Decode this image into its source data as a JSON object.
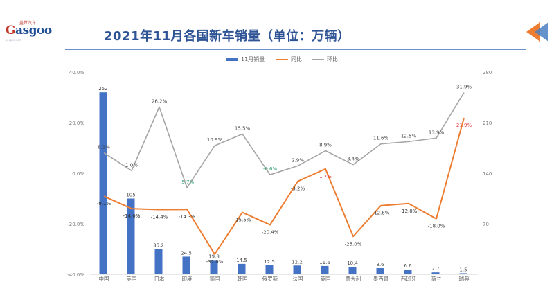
{
  "header": {
    "logo_top": "盖世汽车",
    "logo_word_g": "G",
    "logo_word_rest": "asgoo",
    "logo_tagline": "gasgoo.com",
    "title": "2021年11月各国新车销量（单位：万辆）"
  },
  "legend": {
    "bar": "11月销量",
    "yoy": "同比",
    "mom": "环比"
  },
  "colors": {
    "bar": "#4472c4",
    "yoy": "#ed7d31",
    "mom": "#a5a5a5",
    "title": "#2f5496",
    "neg_green": "#2e9e6e",
    "pos_red": "#e03b3b",
    "arrow_orange": "#ed7d31",
    "arrow_blue": "#4a7fc1"
  },
  "chart_data": {
    "type": "bar",
    "categories": [
      "中国",
      "美国",
      "日本",
      "印度",
      "德国",
      "韩国",
      "俄罗斯",
      "法国",
      "英国",
      "意大利",
      "墨西哥",
      "西班牙",
      "荷兰",
      "瑞典"
    ],
    "series": [
      {
        "name": "11月销量",
        "type": "bar",
        "axis": "right",
        "values": [
          252,
          105,
          35.2,
          24.5,
          19.8,
          14.5,
          12.5,
          12.2,
          11.6,
          10.4,
          8.6,
          6.6,
          2.7,
          1.5
        ],
        "labels": [
          "252",
          "105",
          "35.2",
          "24.5",
          "19.8",
          "14.5",
          "12.5",
          "12.2",
          "11.6",
          "10.4",
          "8.6",
          "6.6",
          "2.7",
          "1.5"
        ]
      },
      {
        "name": "同比",
        "type": "line",
        "axis": "left",
        "values": [
          -9.1,
          -14.0,
          -14.4,
          -14.3,
          -32.0,
          -15.5,
          -20.4,
          -3.2,
          1.7,
          -25.0,
          -12.8,
          -12.0,
          -18.0,
          21.9
        ],
        "labels": [
          "-9.1%",
          "-14.0%",
          "-14.4%",
          "-14.3%",
          "-32.0%",
          "-15.5%",
          "-20.4%",
          "-3.2%",
          "1.7%",
          "-25.0%",
          "-12.8%",
          "-12.0%",
          "-18.0%",
          "21.9%"
        ]
      },
      {
        "name": "环比",
        "type": "line",
        "axis": "left",
        "values": [
          8.1,
          1.0,
          26.2,
          -5.7,
          10.9,
          15.5,
          -0.6,
          2.9,
          8.9,
          3.4,
          11.6,
          12.5,
          13.9,
          31.9
        ],
        "labels": [
          "8.1%",
          "1.0%",
          "26.2%",
          "-5.7%",
          "10.9%",
          "15.5%",
          "-0.6%",
          "2.9%",
          "8.9%",
          "3.4%",
          "11.6%",
          "12.5%",
          "13.9%",
          "31.9%"
        ]
      }
    ],
    "y_left": {
      "ticks": [
        "40.0%",
        "20.0%",
        "0.0%",
        "-20.0%",
        "-40.0%"
      ],
      "range": [
        -40,
        40
      ]
    },
    "y_right": {
      "ticks": [
        "280",
        "210",
        "140",
        "70",
        ""
      ],
      "range": [
        0,
        280
      ]
    },
    "grid": false,
    "legend_position": "top"
  }
}
